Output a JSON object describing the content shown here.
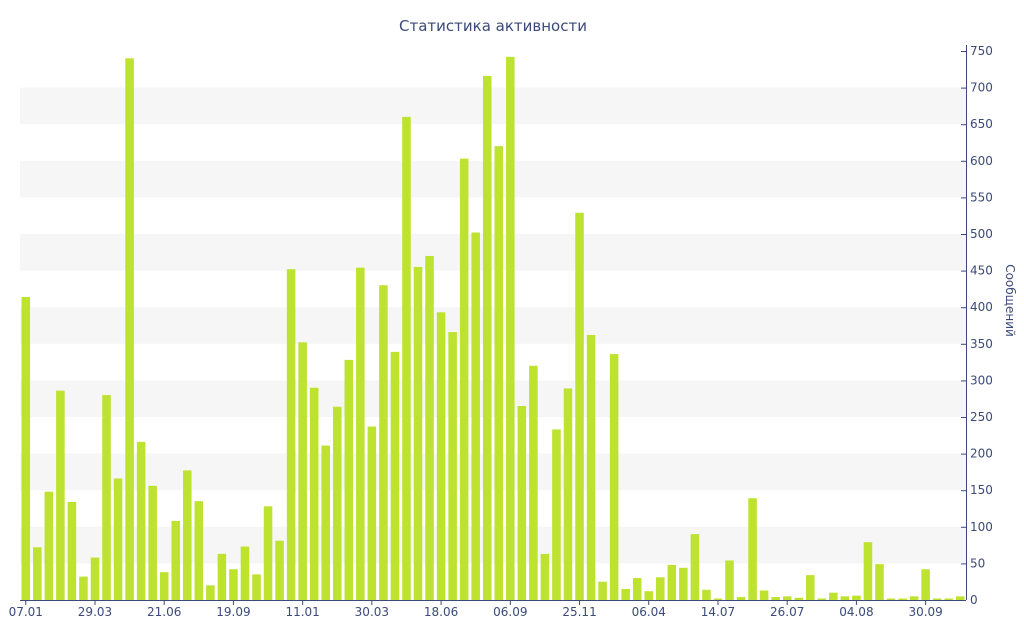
{
  "chart_data": {
    "type": "bar",
    "title": "Статистика активности",
    "xlabel": "",
    "ylabel": "Сообщений",
    "ylim": [
      0,
      750
    ],
    "yticks": [
      0,
      50,
      100,
      150,
      200,
      250,
      300,
      350,
      400,
      450,
      500,
      550,
      600,
      650,
      700,
      750
    ],
    "y_axis_side": "right",
    "xtick_labels": [
      {
        "label": "07.01",
        "index": 0
      },
      {
        "label": "29.03",
        "index": 6
      },
      {
        "label": "21.06",
        "index": 12
      },
      {
        "label": "19.09",
        "index": 18
      },
      {
        "label": "11.01",
        "index": 24
      },
      {
        "label": "30.03",
        "index": 30
      },
      {
        "label": "18.06",
        "index": 36
      },
      {
        "label": "06.09",
        "index": 42
      },
      {
        "label": "25.11",
        "index": 48
      },
      {
        "label": "06.04",
        "index": 54
      },
      {
        "label": "14.07",
        "index": 60
      },
      {
        "label": "26.07",
        "index": 66
      },
      {
        "label": "04.08",
        "index": 72
      },
      {
        "label": "30.09",
        "index": 78
      }
    ],
    "values": [
      414,
      72,
      148,
      286,
      134,
      32,
      58,
      280,
      166,
      740,
      216,
      156,
      38,
      108,
      177,
      135,
      20,
      63,
      42,
      73,
      35,
      128,
      81,
      452,
      352,
      290,
      211,
      264,
      328,
      454,
      237,
      430,
      339,
      660,
      455,
      470,
      393,
      366,
      603,
      502,
      716,
      620,
      742,
      265,
      320,
      63,
      233,
      289,
      529,
      362,
      25,
      336,
      15,
      30,
      12,
      31,
      48,
      44,
      90,
      14,
      2,
      54,
      4,
      139,
      13,
      4,
      5,
      3,
      34,
      2,
      10,
      5,
      6,
      79,
      49,
      2,
      2,
      5,
      42,
      2,
      2,
      5
    ],
    "grid": "horizontal bands",
    "legend": "none",
    "colors": {
      "bar": "#bde22f",
      "band": "#f6f6f6",
      "axis": "#3b4a7a",
      "text": "#3b4a7a"
    }
  }
}
